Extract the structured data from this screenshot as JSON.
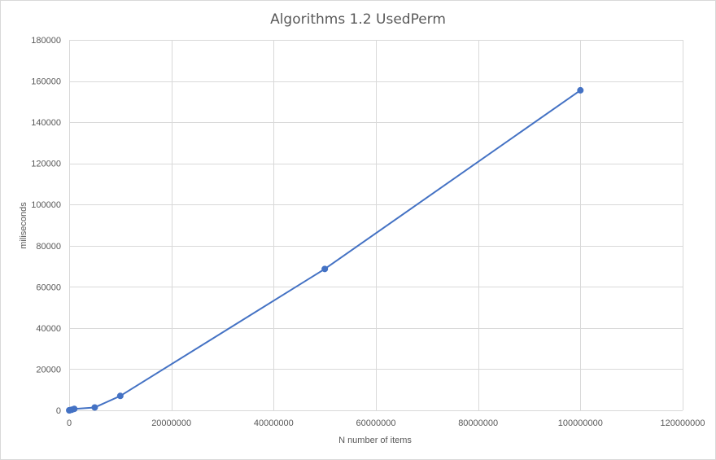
{
  "chart_data": {
    "type": "line",
    "title": "Algorithms 1.2 UsedPerm",
    "xlabel": "N number of items",
    "ylabel": "miliseconds",
    "xlim": [
      0,
      120000000
    ],
    "ylim": [
      0,
      180000
    ],
    "x_ticks": [
      "0",
      "20000000",
      "40000000",
      "60000000",
      "80000000",
      "100000000",
      "120000000"
    ],
    "y_ticks": [
      "0",
      "20000",
      "40000",
      "60000",
      "80000",
      "100000",
      "120000",
      "140000",
      "160000",
      "180000"
    ],
    "grid": true,
    "legend": "none",
    "series": [
      {
        "color": "#4472c4",
        "marker": "circle",
        "x": [
          10000,
          50000,
          100000,
          500000,
          1000000,
          5000000,
          10000000,
          50000000,
          100000000
        ],
        "y": [
          5,
          30,
          70,
          300,
          700,
          1400,
          7000,
          68700,
          155500
        ]
      }
    ]
  }
}
